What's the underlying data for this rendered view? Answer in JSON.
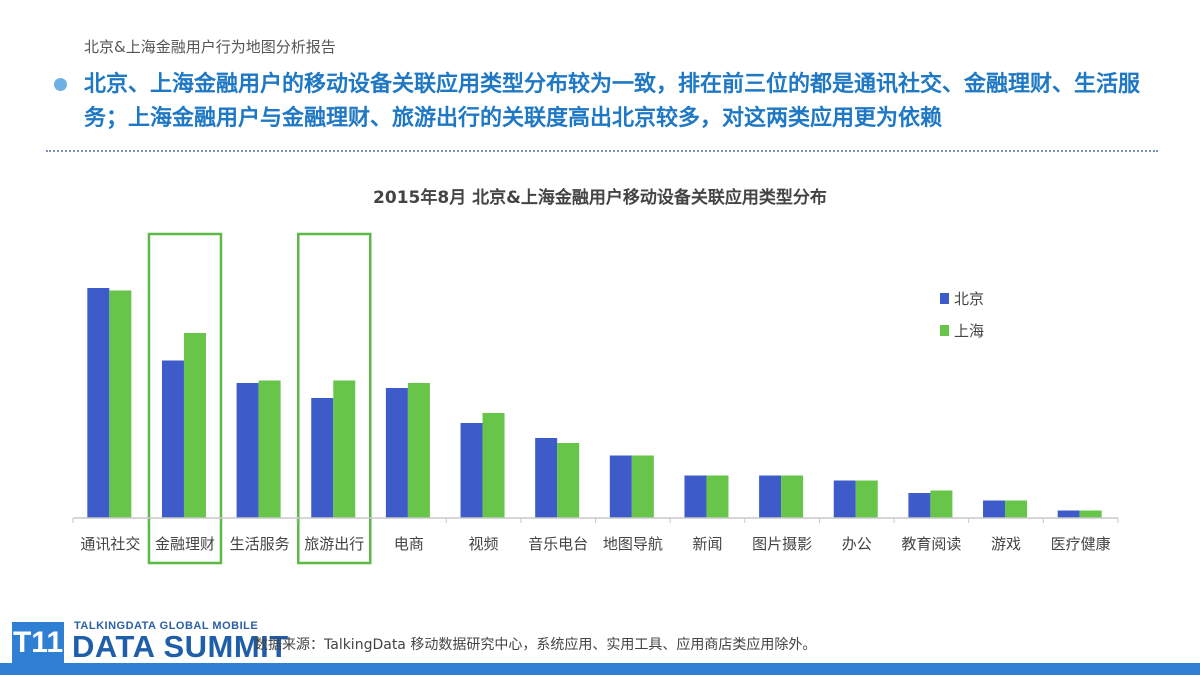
{
  "header": {
    "title": "北京&上海金融用户行为地图分析报告"
  },
  "headline": {
    "text": "北京、上海金融用户的移动设备关联应用类型分布较为一致，排在前三位的都是通讯社交、金融理财、生活服务；上海金融用户与金融理财、旅游出行的关联度高出北京较多，对这两类应用更为依赖"
  },
  "chart_data": {
    "type": "bar",
    "title": "2015年8月   北京&上海金融用户移动设备关联应用类型分布",
    "categories": [
      "通讯社交",
      "金融理财",
      "生活服务",
      "旅游出行",
      "电商",
      "视频",
      "音乐电台",
      "地图导航",
      "新闻",
      "图片摄影",
      "办公",
      "教育阅读",
      "游戏",
      "医疗健康"
    ],
    "series": [
      {
        "name": "北京",
        "color": "#3d5bc9",
        "values": [
          92,
          63,
          54,
          48,
          52,
          38,
          32,
          25,
          17,
          17,
          15,
          10,
          7,
          3
        ]
      },
      {
        "name": "上海",
        "color": "#67c54a",
        "values": [
          91,
          74,
          55,
          55,
          54,
          42,
          30,
          25,
          17,
          17,
          15,
          11,
          7,
          3
        ]
      }
    ],
    "ylim": [
      0,
      100
    ],
    "grid": false,
    "legend": "top-right",
    "highlighted_categories": [
      "金融理财",
      "旅游出行"
    ],
    "highlight_color": "#5cb947"
  },
  "footer": {
    "logo_mark": "T11",
    "logo_top": "TALKINGDATA GLOBAL MOBILE",
    "logo_main": "DATA SUMMIT",
    "source": "数据来源：TalkingData 移动数据研究中心，系统应用、实用工具、应用商店类应用除外。"
  }
}
